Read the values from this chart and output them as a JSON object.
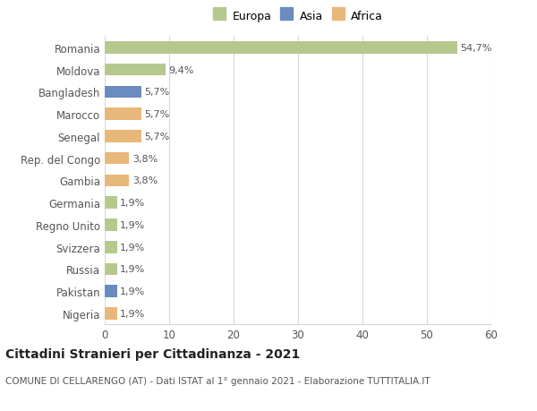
{
  "countries": [
    "Nigeria",
    "Pakistan",
    "Russia",
    "Svizzera",
    "Regno Unito",
    "Germania",
    "Gambia",
    "Rep. del Congo",
    "Senegal",
    "Marocco",
    "Bangladesh",
    "Moldova",
    "Romania"
  ],
  "values": [
    1.9,
    1.9,
    1.9,
    1.9,
    1.9,
    1.9,
    3.8,
    3.8,
    5.7,
    5.7,
    5.7,
    9.4,
    54.7
  ],
  "labels": [
    "1,9%",
    "1,9%",
    "1,9%",
    "1,9%",
    "1,9%",
    "1,9%",
    "3,8%",
    "3,8%",
    "5,7%",
    "5,7%",
    "5,7%",
    "9,4%",
    "54,7%"
  ],
  "bar_colors": [
    "#e8b87a",
    "#6b8cbf",
    "#b5c98e",
    "#b5c98e",
    "#b5c98e",
    "#b5c98e",
    "#e8b87a",
    "#e8b87a",
    "#e8b87a",
    "#e8b87a",
    "#6b8cbf",
    "#b5c98e",
    "#b5c98e"
  ],
  "xlim": [
    0,
    60
  ],
  "xticks": [
    0,
    10,
    20,
    30,
    40,
    50,
    60
  ],
  "title": "Cittadini Stranieri per Cittadinanza - 2021",
  "subtitle": "COMUNE DI CELLARENGO (AT) - Dati ISTAT al 1° gennaio 2021 - Elaborazione TUTTITALIA.IT",
  "legend_labels": [
    "Europa",
    "Asia",
    "Africa"
  ],
  "legend_colors": [
    "#b5c98e",
    "#6b8cbf",
    "#e8b87a"
  ],
  "background_color": "#ffffff",
  "grid_color": "#d8d8d8",
  "bar_height": 0.55,
  "label_fontsize": 8,
  "tick_fontsize": 8.5,
  "title_fontsize": 10,
  "subtitle_fontsize": 7.5
}
